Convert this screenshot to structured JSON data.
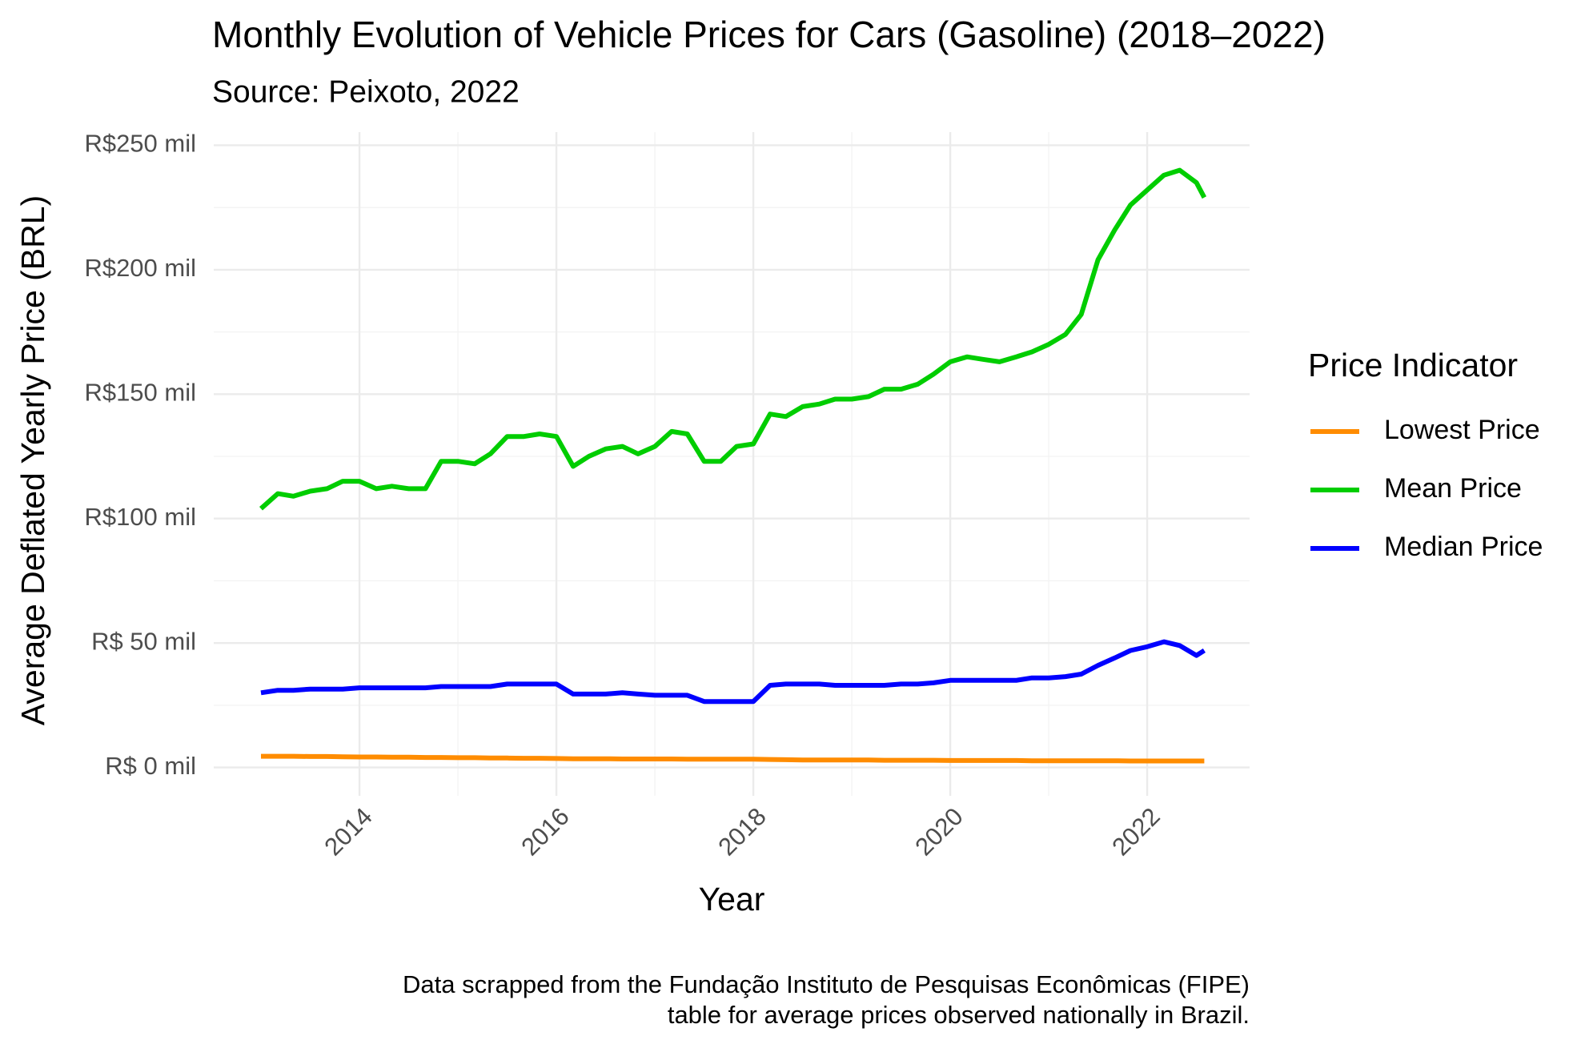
{
  "chart_data": {
    "type": "line",
    "title": "Monthly Evolution of Vehicle Prices for Cars (Gasoline) (2018–2022)",
    "subtitle": "Source: Peixoto, 2022",
    "x_label": "Year",
    "y_label": "Average Deflated Yearly Price (BRL)",
    "legend_title": "Price Indicator",
    "caption": [
      "Data scrapped from the Fundação Instituto de Pesquisas Econômicas (FIPE)",
      "table for average prices observed nationally in Brazil."
    ],
    "legend_position": "right",
    "grid": true,
    "xlim": [
      2012.52,
      2023.04
    ],
    "ylim": [
      -11.4,
      255.3
    ],
    "xticks": [
      2014,
      2016,
      2018,
      2020,
      2022
    ],
    "yticks": [
      {
        "value": 0,
        "label": "R$  0 mil"
      },
      {
        "value": 50,
        "label": "R$ 50 mil"
      },
      {
        "value": 100,
        "label": "R$100 mil"
      },
      {
        "value": 150,
        "label": "R$150 mil"
      },
      {
        "value": 200,
        "label": "R$200 mil"
      },
      {
        "value": 250,
        "label": "R$250 mil"
      }
    ],
    "x": [
      2013.0,
      2013.17,
      2013.33,
      2013.5,
      2013.67,
      2013.83,
      2014.0,
      2014.17,
      2014.33,
      2014.5,
      2014.67,
      2014.83,
      2015.0,
      2015.17,
      2015.33,
      2015.5,
      2015.67,
      2015.83,
      2016.0,
      2016.17,
      2016.33,
      2016.5,
      2016.67,
      2016.83,
      2017.0,
      2017.17,
      2017.33,
      2017.5,
      2017.67,
      2017.83,
      2018.0,
      2018.17,
      2018.33,
      2018.5,
      2018.67,
      2018.83,
      2019.0,
      2019.17,
      2019.33,
      2019.5,
      2019.67,
      2019.83,
      2020.0,
      2020.17,
      2020.33,
      2020.5,
      2020.67,
      2020.83,
      2021.0,
      2021.17,
      2021.33,
      2021.5,
      2021.67,
      2021.83,
      2022.0,
      2022.17,
      2022.33,
      2022.5,
      2022.58
    ],
    "series": [
      {
        "name": "Lowest Price",
        "color": "#ff8c00",
        "values": [
          4.5,
          4.5,
          4.5,
          4.4,
          4.4,
          4.3,
          4.2,
          4.2,
          4.1,
          4.1,
          4.0,
          4.0,
          3.9,
          3.9,
          3.8,
          3.8,
          3.7,
          3.7,
          3.6,
          3.5,
          3.5,
          3.5,
          3.4,
          3.4,
          3.4,
          3.4,
          3.3,
          3.3,
          3.3,
          3.3,
          3.3,
          3.2,
          3.1,
          3.0,
          3.0,
          3.0,
          3.0,
          3.0,
          2.9,
          2.9,
          2.9,
          2.9,
          2.8,
          2.8,
          2.8,
          2.8,
          2.8,
          2.7,
          2.7,
          2.7,
          2.7,
          2.7,
          2.7,
          2.6,
          2.6,
          2.6,
          2.6,
          2.6,
          2.6
        ]
      },
      {
        "name": "Mean Price",
        "color": "#00cd00",
        "values": [
          104,
          110,
          109,
          111,
          112,
          115,
          115,
          112,
          113,
          112,
          112,
          123,
          123,
          122,
          126,
          133,
          133,
          134,
          133,
          121,
          125,
          128,
          129,
          126,
          129,
          135,
          134,
          123,
          123,
          129,
          130,
          142,
          141,
          145,
          146,
          148,
          148,
          149,
          152,
          152,
          154,
          158,
          163,
          165,
          164,
          163,
          165,
          167,
          170,
          174,
          182,
          204,
          216,
          226,
          232,
          238,
          240,
          235,
          229
        ]
      },
      {
        "name": "Median Price",
        "color": "#0000ff",
        "values": [
          30,
          31,
          31,
          31.5,
          31.5,
          31.5,
          32,
          32,
          32,
          32,
          32,
          32.5,
          32.5,
          32.5,
          32.5,
          33.5,
          33.5,
          33.5,
          33.5,
          29.5,
          29.5,
          29.5,
          30,
          29.5,
          29,
          29,
          29,
          26.5,
          26.5,
          26.5,
          26.5,
          33,
          33.5,
          33.5,
          33.5,
          33,
          33,
          33,
          33,
          33.5,
          33.5,
          34,
          35,
          35,
          35,
          35,
          35,
          36,
          36,
          36.5,
          37.5,
          41,
          44,
          47,
          48.5,
          50.5,
          49,
          45,
          47
        ]
      }
    ]
  }
}
